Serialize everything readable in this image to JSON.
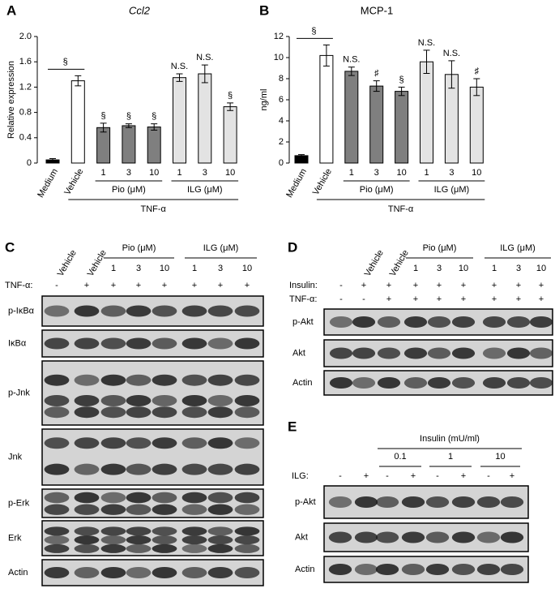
{
  "chart_data": [
    {
      "type": "bar",
      "panel": "A",
      "title": "Ccl2",
      "y_label": "Relative expression",
      "categories": [
        "Medium",
        "Vehicle",
        "1",
        "3",
        "10",
        "1",
        "3",
        "10"
      ],
      "values": [
        0.05,
        1.3,
        0.56,
        0.59,
        0.57,
        1.35,
        1.41,
        0.89
      ],
      "errors": [
        0.02,
        0.08,
        0.07,
        0.03,
        0.05,
        0.06,
        0.14,
        0.06
      ],
      "colors": [
        "#000000",
        "#ffffff",
        "#7f7f7f",
        "#7f7f7f",
        "#7f7f7f",
        "#e3e3e3",
        "#e3e3e3",
        "#e3e3e3"
      ],
      "annotations": [
        null,
        null,
        "§",
        "§",
        "§",
        "N.S.",
        "N.S.",
        "§"
      ],
      "bracket_label": "§",
      "groups": [
        "Pio (μM)",
        "ILG (μM)"
      ],
      "treatment": "TNF-α",
      "ylim": [
        0,
        2
      ],
      "yticks": [
        0,
        0.4,
        0.8,
        1.2,
        1.6,
        {
          "value": 2,
          "label": "2.0"
        }
      ]
    },
    {
      "type": "bar",
      "panel": "B",
      "title": "MCP-1",
      "y_label": "ng/ml",
      "categories": [
        "Medium",
        "Vehicle",
        "1",
        "3",
        "10",
        "1",
        "3",
        "10"
      ],
      "values": [
        0.7,
        10.2,
        8.7,
        7.3,
        6.8,
        9.6,
        8.4,
        7.2
      ],
      "errors": [
        0.1,
        1.0,
        0.4,
        0.5,
        0.4,
        1.1,
        1.3,
        0.8
      ],
      "colors": [
        "#000000",
        "#ffffff",
        "#7f7f7f",
        "#7f7f7f",
        "#7f7f7f",
        "#e3e3e3",
        "#e3e3e3",
        "#e3e3e3"
      ],
      "annotations": [
        null,
        null,
        "N.S.",
        "♯",
        "§",
        "N.S.",
        "N.S.",
        "♯"
      ],
      "bracket_label": "§",
      "groups": [
        "Pio (μM)",
        "ILG (μM)"
      ],
      "treatment": "TNF-α",
      "ylim": [
        0,
        12
      ],
      "yticks": [
        0,
        2,
        4,
        6,
        8,
        10,
        12
      ]
    }
  ],
  "blots": [
    {
      "panel": "C",
      "lane_headers": [
        "Vehicle",
        "Vehicle"
      ],
      "groups": [
        {
          "label": "Pio (μM)",
          "doses": [
            "1",
            "3",
            "10"
          ]
        },
        {
          "label": "ILG (μM)",
          "doses": [
            "1",
            "3",
            "10"
          ]
        }
      ],
      "treatments": [
        {
          "label": "TNF-α:",
          "signs": [
            "-",
            "+",
            "+",
            "+",
            "+",
            "+",
            "+",
            "+"
          ]
        }
      ],
      "rows": [
        "p-IκBα",
        "IκBα",
        "p-Jnk",
        "Jnk",
        "p-Erk",
        "Erk",
        "Actin"
      ]
    },
    {
      "panel": "D",
      "lane_headers": [
        "Vehicle",
        "Vehicle"
      ],
      "groups": [
        {
          "label": "Pio (μM)",
          "doses": [
            "1",
            "3",
            "10"
          ]
        },
        {
          "label": "ILG (μM)",
          "doses": [
            "1",
            "3",
            "10"
          ]
        }
      ],
      "treatments": [
        {
          "label": "Insulin:",
          "signs": [
            "-",
            "+",
            "+",
            "+",
            "+",
            "+",
            "+",
            "+",
            "+"
          ]
        },
        {
          "label": "TNF-α:",
          "signs": [
            "-",
            "-",
            "+",
            "+",
            "+",
            "+",
            "+",
            "+",
            "+"
          ]
        }
      ],
      "rows": [
        "p-Akt",
        "Akt",
        "Actin"
      ]
    },
    {
      "panel": "E",
      "lane_headers": [],
      "groups": [
        {
          "label": "Insulin (mU/ml)",
          "doses": [
            "0.1",
            "1",
            "10"
          ]
        }
      ],
      "treatments": [
        {
          "label": "ILG:",
          "signs": [
            "-",
            "+",
            "-",
            "+",
            "-",
            "+",
            "-",
            "+"
          ]
        }
      ],
      "rows": [
        "p-Akt",
        "Akt",
        "Actin"
      ]
    }
  ]
}
